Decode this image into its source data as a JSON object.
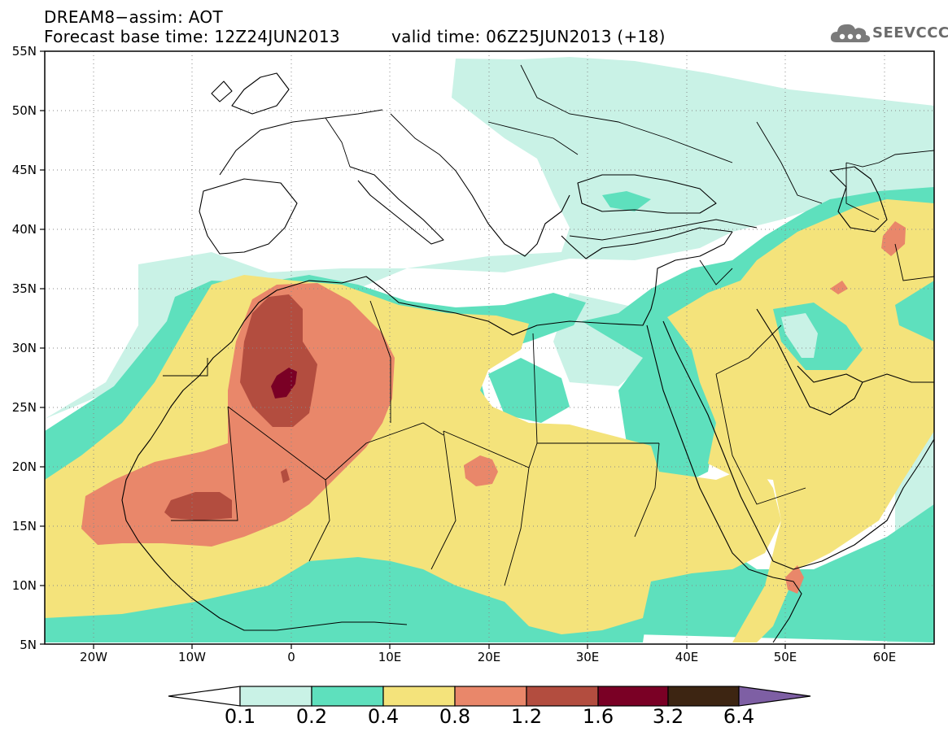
{
  "header": {
    "title": "DREAM8−assim: AOT",
    "base_time": "Forecast base time: 12Z24JUN2013",
    "valid_time": "valid time: 06Z25JUN2013 (+18)",
    "logo_text": "SEEVCCC"
  },
  "map": {
    "variable": "Aerosol optical thickness (AOT)",
    "region": "North Africa / Middle East",
    "lon_range": [
      -25,
      65
    ],
    "lat_range": [
      5,
      55
    ],
    "lon_ticks": [
      "20W",
      "10W",
      "0",
      "10E",
      "20E",
      "30E",
      "40E",
      "50E",
      "60E"
    ],
    "lat_ticks": [
      "5N",
      "10N",
      "15N",
      "20N",
      "25N",
      "30N",
      "35N",
      "40N",
      "45N",
      "50N",
      "55N"
    ]
  },
  "colorbar": {
    "labels": [
      "0.1",
      "0.2",
      "0.4",
      "0.8",
      "1.2",
      "1.6",
      "3.2",
      "6.4"
    ],
    "colors": [
      "#ffffff",
      "#c9f2e6",
      "#5ee0bd",
      "#f4e37b",
      "#e9876a",
      "#b34d3f",
      "#7a0025",
      "#3d2512",
      "#7e5fa4"
    ]
  }
}
